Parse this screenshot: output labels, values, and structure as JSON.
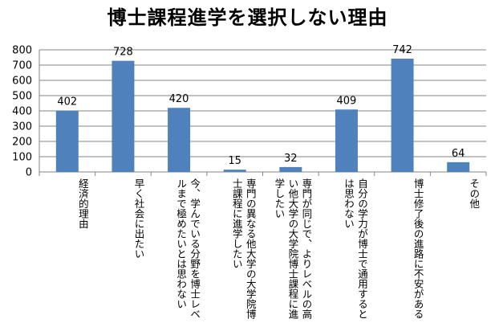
{
  "chart_data": {
    "type": "bar",
    "title": "博士課程進学を選択しない理由",
    "xlabel": "",
    "ylabel": "",
    "ylim": [
      0,
      800
    ],
    "yticks": [
      0,
      100,
      200,
      300,
      400,
      500,
      600,
      700,
      800
    ],
    "grid": true,
    "legend": "none",
    "categories": [
      "経済的理由",
      "早く社会に出たい",
      "今、学んでいる分野を博士レベルまで極めたいとは思わない",
      "専門の異なる他大学の大学院博士課程に進学したい",
      "専門が同じで、よりレベルの高い他大学の大学院博士課程に進学したい",
      "自分の学力が博士で通用するとは思わない",
      "博士修了後の進路に不安がある",
      "その他"
    ],
    "values": [
      402,
      728,
      420,
      15,
      32,
      409,
      742,
      64
    ],
    "bar_color": "#4f81bd",
    "grid_color": "#868686"
  }
}
